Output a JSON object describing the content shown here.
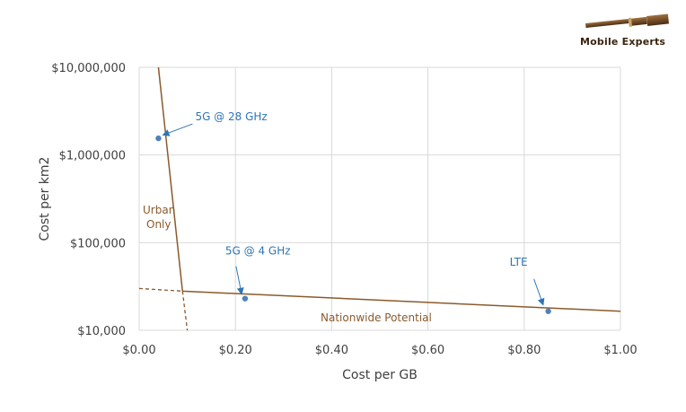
{
  "logo": {
    "text": "Mobile Experts",
    "icon": "telescope-icon"
  },
  "chart_data": {
    "type": "scatter",
    "xlabel": "Cost per GB",
    "ylabel": "Cost per km2",
    "x_scale": "linear",
    "y_scale": "log",
    "xlim": [
      0,
      1.0
    ],
    "ylim": [
      10000,
      10000000
    ],
    "grid": true,
    "x_ticks": [
      0,
      0.2,
      0.4,
      0.6,
      0.8,
      1.0
    ],
    "x_tick_labels": [
      "$0.00",
      "$0.20",
      "$0.40",
      "$0.60",
      "$0.80",
      "$1.00"
    ],
    "y_ticks": [
      10000,
      100000,
      1000000,
      10000000
    ],
    "y_tick_labels": [
      "$10,000",
      "$100,000",
      "$1,000,000",
      "$10,000,000"
    ],
    "points": [
      {
        "label": "5G @ 28 GHz",
        "x": 0.04,
        "y": 1550000
      },
      {
        "label": "5G @ 4 GHz",
        "x": 0.22,
        "y": 23000
      },
      {
        "label": "LTE",
        "x": 0.85,
        "y": 16500
      }
    ],
    "lines": [
      {
        "name": "Urban Only",
        "points": [
          [
            0.04,
            10000000
          ],
          [
            0.09,
            28000
          ]
        ],
        "style": "solid",
        "extension": [
          [
            0.09,
            28000
          ],
          [
            0.1,
            10000
          ]
        ]
      },
      {
        "name": "Nationwide Potential",
        "points": [
          [
            0.09,
            28000
          ],
          [
            1.0,
            16500
          ]
        ],
        "style": "solid",
        "extension": [
          [
            0.0,
            30000
          ],
          [
            0.09,
            28000
          ]
        ]
      }
    ],
    "colors": {
      "points": "#4f81bd",
      "annotations": "#2e75b6",
      "lines": "#8b5a2b",
      "grid": "#d9d9d9"
    }
  }
}
